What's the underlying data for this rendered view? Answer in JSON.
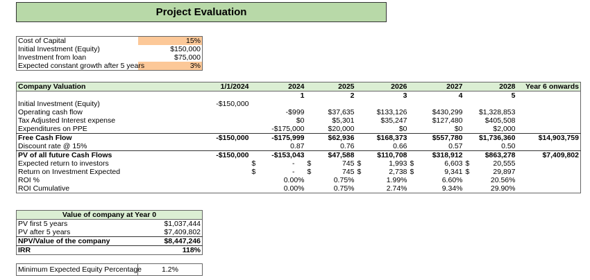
{
  "title": "Project Evaluation",
  "inputs": [
    {
      "label": "Cost of Capital",
      "value": "15%",
      "highlight": true
    },
    {
      "label": "Initial Investment (Equity)",
      "value": "$150,000",
      "highlight": false
    },
    {
      "label": "Investment from loan",
      "value": "$75,000",
      "highlight": false
    },
    {
      "label": "Expected constant growth after 5 years",
      "value": "3%",
      "highlight": true
    }
  ],
  "valuation": {
    "header": [
      "Company Valuation",
      "1/1/2024",
      "2024",
      "2025",
      "2026",
      "2027",
      "2028",
      "Year 6 onwards"
    ],
    "year_numbers": [
      "",
      "",
      "1",
      "2",
      "3",
      "4",
      "5",
      ""
    ],
    "rows": [
      {
        "label": "Initial Investment (Equity)",
        "values": [
          "-$150,000",
          "",
          "",
          "",
          "",
          "",
          ""
        ]
      },
      {
        "label": "Operating cash flow",
        "values": [
          "",
          "-$999",
          "$37,635",
          "$133,126",
          "$430,299",
          "$1,328,853",
          ""
        ]
      },
      {
        "label": "Tax Adjusted Interest expense",
        "values": [
          "",
          "$0",
          "$5,301",
          "$35,247",
          "$127,480",
          "$405,508",
          ""
        ]
      },
      {
        "label": "Expenditures on PPE",
        "values": [
          "",
          "-$175,000",
          "$20,000",
          "$0",
          "$0",
          "$2,000",
          ""
        ]
      },
      {
        "label": "Free Cash Flow",
        "values": [
          "-$150,000",
          "-$175,999",
          "$62,936",
          "$168,373",
          "$557,780",
          "$1,736,360",
          "$14,903,759"
        ],
        "bold": true
      },
      {
        "label": "Discount rate @ 15%",
        "values": [
          "",
          "0.87",
          "0.76",
          "0.66",
          "0.57",
          "0.50",
          ""
        ]
      },
      {
        "label": "PV of all future Cash Flows",
        "values": [
          "-$150,000",
          "-$153,043",
          "$47,588",
          "$110,708",
          "$318,912",
          "$863,278",
          "$7,409,802"
        ],
        "bold": true
      },
      {
        "label": "Expected return to investors",
        "values": [
          "",
          "-",
          "745",
          "1,993",
          "6,603",
          "20,555",
          ""
        ],
        "currency": "$"
      },
      {
        "label": "Return on Investment Expected",
        "values": [
          "",
          "-",
          "745",
          "2,738",
          "9,341",
          "29,897",
          ""
        ],
        "currency": "$"
      },
      {
        "label": "ROI %",
        "values": [
          "",
          "0.00%",
          "0.75%",
          "1.99%",
          "6.60%",
          "20.56%",
          ""
        ]
      },
      {
        "label": "ROI Cumulative",
        "values": [
          "",
          "0.00%",
          "0.75%",
          "2.74%",
          "9.34%",
          "29.90%",
          ""
        ]
      }
    ]
  },
  "company_value": {
    "title": "Value of company at Year 0",
    "rows": [
      {
        "label": "PV first 5 years",
        "value": "$1,037,444"
      },
      {
        "label": "PV after 5 years",
        "value": "$7,409,802"
      },
      {
        "label": "NPV/Value of the company",
        "value": "$8,447,246"
      },
      {
        "label": "IRR",
        "value": "118%"
      }
    ]
  },
  "min_equity": {
    "label": "Minimum Expected Equity Percentage",
    "value": "1.2%"
  },
  "colors": {
    "title_bg": "#b8d9a8",
    "header_bg": "#dbeed3",
    "input_highlight": "#fcc898"
  }
}
